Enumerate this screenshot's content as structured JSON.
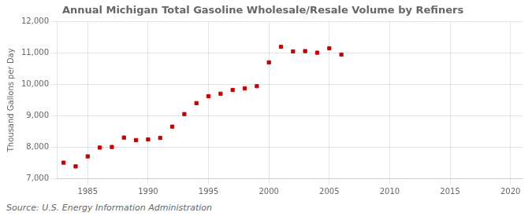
{
  "chart_data": {
    "type": "scatter",
    "title": "Annual Michigan Total Gasoline Wholesale/Resale Volume by Refiners",
    "ylabel": "Thousand Gallons per Day",
    "annotation": "Source: U.S. Energy Information Administration",
    "x": [
      1983,
      1984,
      1985,
      1986,
      1987,
      1988,
      1989,
      1990,
      1991,
      1992,
      1993,
      1994,
      1995,
      1996,
      1997,
      1998,
      1999,
      2000,
      2001,
      2002,
      2003,
      2004,
      2005,
      2006
    ],
    "values": [
      7500,
      7380,
      7700,
      7980,
      8000,
      8300,
      8220,
      8240,
      8290,
      8650,
      9050,
      9400,
      9620,
      9700,
      9820,
      9870,
      9940,
      10700,
      11200,
      11050,
      11060,
      11010,
      11150,
      10950
    ],
    "color": "#cc0000",
    "marker": "square",
    "xlim": [
      1982.5,
      2021
    ],
    "xticks": [
      1985,
      1990,
      1995,
      2000,
      2005,
      2010,
      2015,
      2020
    ],
    "ylim": [
      7000,
      12000
    ],
    "yticks": [
      {
        "value": 7000,
        "label": "7,000"
      },
      {
        "value": 8000,
        "label": "8,000"
      },
      {
        "value": 9000,
        "label": "9,000"
      },
      {
        "value": 10000,
        "label": "10,000"
      },
      {
        "value": 11000,
        "label": "11,000"
      },
      {
        "value": 12000,
        "label": "12,000"
      }
    ],
    "grid": true
  }
}
